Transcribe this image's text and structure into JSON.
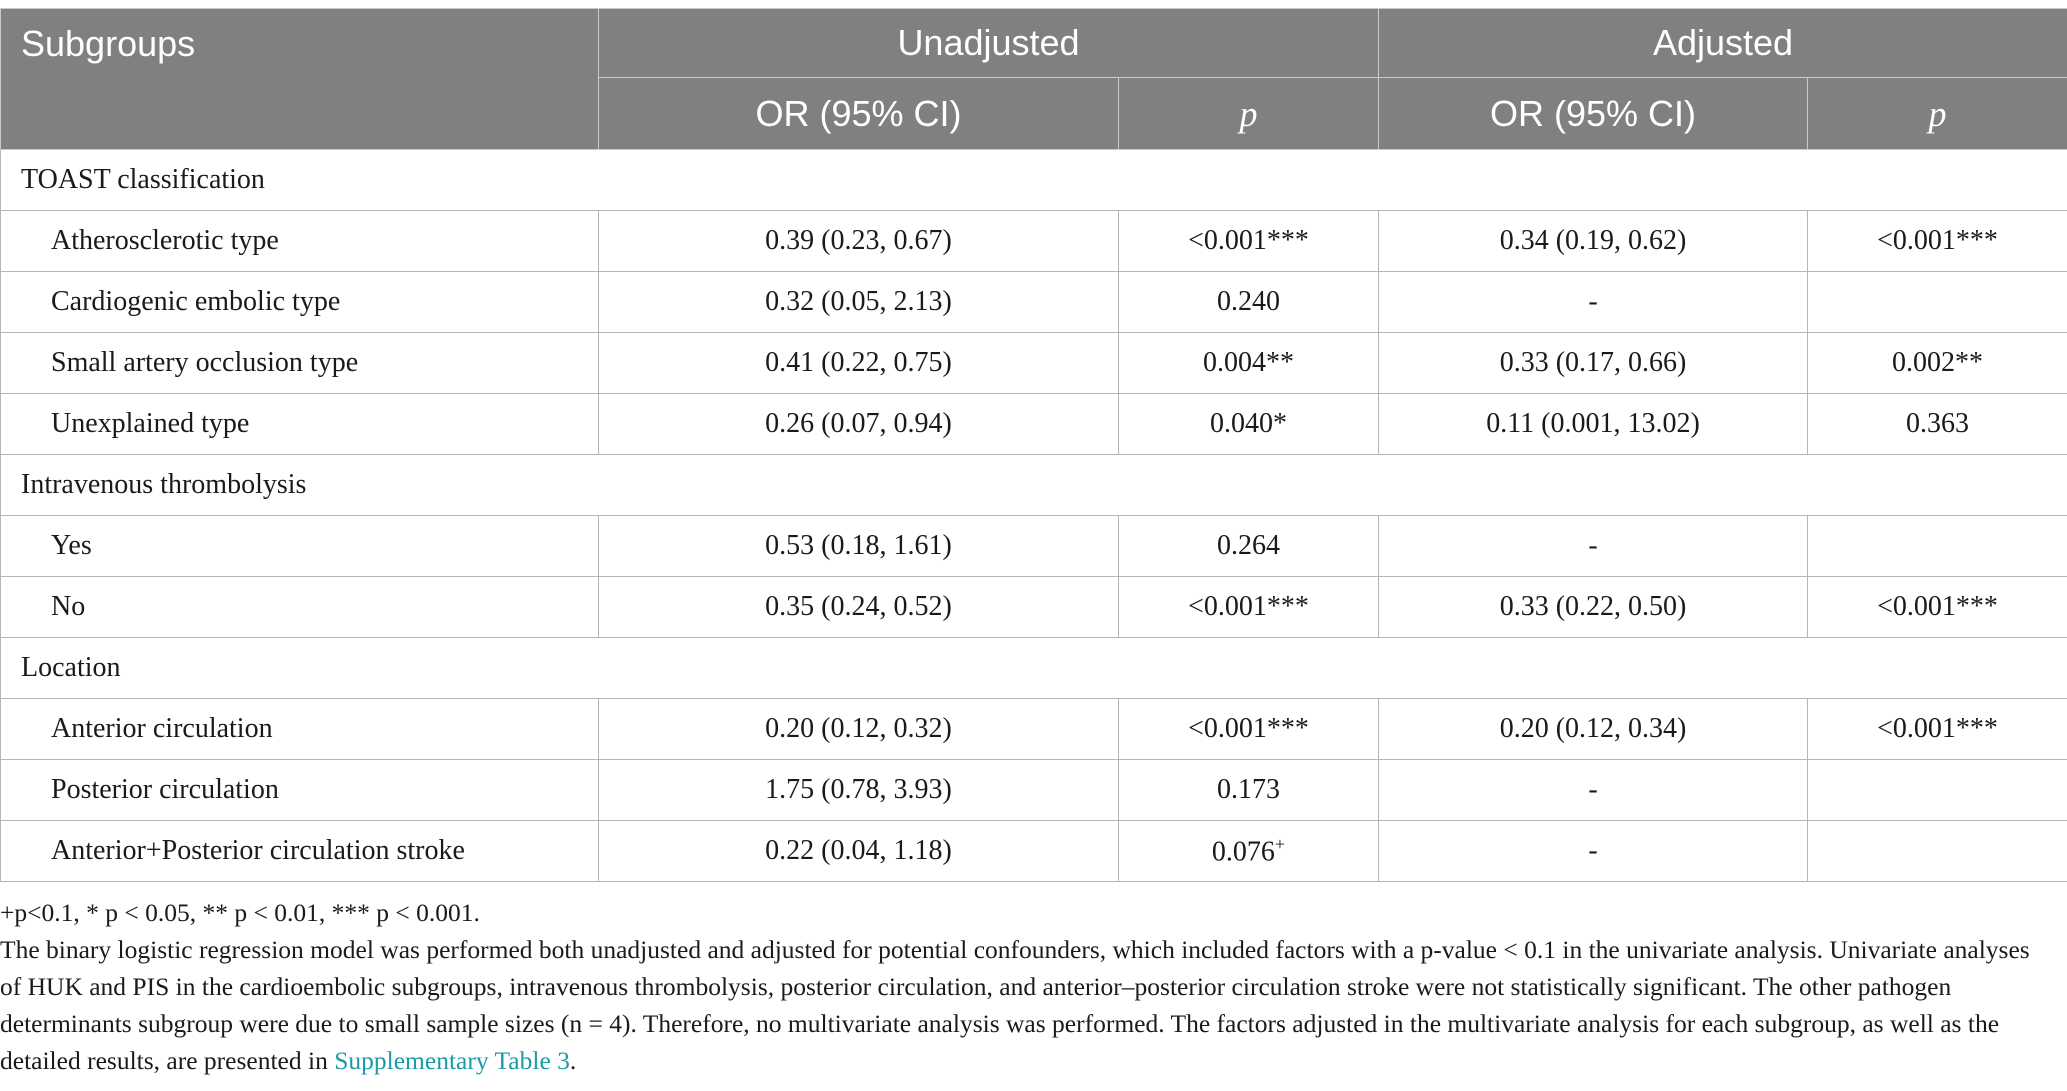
{
  "header": {
    "subgroups": "Subgroups",
    "unadjusted": "Unadjusted",
    "adjusted": "Adjusted",
    "or_ci": "OR (95% CI)",
    "p": "p"
  },
  "sections": [
    {
      "title": "TOAST classification",
      "rows": [
        {
          "label": "Atherosclerotic type",
          "u_or": "0.39 (0.23, 0.67)",
          "u_p": "<0.001***",
          "a_or": "0.34 (0.19, 0.62)",
          "a_p": "<0.001***"
        },
        {
          "label": "Cardiogenic embolic type",
          "u_or": "0.32 (0.05, 2.13)",
          "u_p": "0.240",
          "a_or": "-",
          "a_p": ""
        },
        {
          "label": "Small artery occlusion type",
          "u_or": "0.41 (0.22, 0.75)",
          "u_p": "0.004**",
          "a_or": "0.33 (0.17, 0.66)",
          "a_p": "0.002**"
        },
        {
          "label": "Unexplained type",
          "u_or": "0.26 (0.07, 0.94)",
          "u_p": "0.040*",
          "a_or": "0.11 (0.001, 13.02)",
          "a_p": "0.363"
        }
      ]
    },
    {
      "title": "Intravenous thrombolysis",
      "rows": [
        {
          "label": "Yes",
          "u_or": "0.53 (0.18, 1.61)",
          "u_p": "0.264",
          "a_or": "-",
          "a_p": ""
        },
        {
          "label": "No",
          "u_or": "0.35 (0.24, 0.52)",
          "u_p": "<0.001***",
          "a_or": "0.33 (0.22, 0.50)",
          "a_p": "<0.001***"
        }
      ]
    },
    {
      "title": "Location",
      "rows": [
        {
          "label": "Anterior circulation",
          "u_or": "0.20 (0.12, 0.32)",
          "u_p": "<0.001***",
          "a_or": "0.20 (0.12, 0.34)",
          "a_p": "<0.001***"
        },
        {
          "label": "Posterior circulation",
          "u_or": "1.75 (0.78, 3.93)",
          "u_p": "0.173",
          "a_or": "-",
          "a_p": ""
        },
        {
          "label": "Anterior+Posterior circulation stroke",
          "u_or": "0.22 (0.04, 1.18)",
          "u_p": "0.076",
          "u_p_sup": "+",
          "a_or": "-",
          "a_p": ""
        }
      ]
    }
  ],
  "footnotes": {
    "significance": "+p<0.1, * p < 0.05, ** p < 0.01, *** p < 0.001.",
    "description": "The binary logistic regression model was performed both unadjusted and adjusted for potential confounders, which included factors with a p-value < 0.1 in the univariate analysis. Univariate analyses of HUK and PIS in the cardioembolic subgroups, intravenous thrombolysis, posterior circulation, and anterior–posterior circulation stroke were not statistically significant. The other pathogen determinants subgroup were due to small sample sizes (n = 4). Therefore, no multivariate analysis was performed. The factors adjusted in the multivariate analysis for each subgroup, as well as the detailed results, are presented in",
    "link_text": "Supplementary Table 3",
    "end": "."
  }
}
